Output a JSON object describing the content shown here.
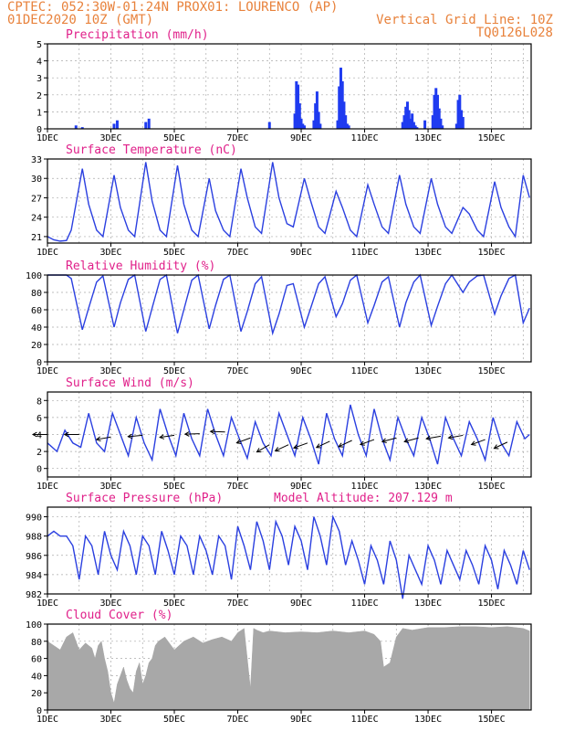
{
  "header": {
    "line1": "CPTEC:   052:30W-01:24N   PROX01: LOURENCO (AP)",
    "line2_left": "01DEC2020 10Z (GMT)",
    "line2_right": "Vertical Grid Line: 10Z",
    "line3_right": "TQ0126L028"
  },
  "colors": {
    "header": "#e8823c",
    "title": "#e0208a",
    "series": "#2a3fe0",
    "bars": "#1f3bf0",
    "cloud": "#a8a8a8",
    "grid": "#aaaaaa"
  },
  "x_ticks": [
    "1DEC",
    "3DEC",
    "5DEC",
    "7DEC",
    "9DEC",
    "11DEC",
    "13DEC",
    "15DEC"
  ],
  "chart_data": [
    {
      "type": "bar",
      "title": "Precipitation (mm/h)",
      "ylim": [
        0,
        5
      ],
      "yticks": [
        0,
        1,
        2,
        3,
        4,
        5
      ],
      "x_unit": "days since 01DEC2020 10Z",
      "x": [
        0.9,
        1.1,
        2.1,
        2.2,
        3.1,
        3.2,
        7.0,
        7.8,
        7.85,
        7.9,
        7.95,
        8.0,
        8.05,
        8.1,
        8.4,
        8.45,
        8.5,
        8.55,
        8.6,
        9.15,
        9.2,
        9.25,
        9.3,
        9.35,
        9.4,
        9.45,
        9.5,
        11.2,
        11.25,
        11.3,
        11.35,
        11.4,
        11.45,
        11.5,
        11.55,
        11.6,
        11.65,
        11.9,
        12.15,
        12.2,
        12.25,
        12.3,
        12.35,
        12.4,
        12.45,
        12.9,
        12.95,
        13.0,
        13.05,
        13.1
      ],
      "values": [
        0.2,
        0.1,
        0.3,
        0.5,
        0.4,
        0.6,
        0.4,
        0.9,
        2.8,
        2.6,
        1.5,
        0.6,
        0.3,
        0.2,
        0.5,
        1.5,
        2.2,
        1.0,
        0.3,
        0.5,
        2.5,
        3.6,
        2.8,
        1.6,
        0.8,
        0.3,
        0.2,
        0.4,
        0.8,
        1.3,
        1.6,
        1.1,
        0.6,
        0.9,
        0.4,
        0.2,
        0.1,
        0.5,
        0.8,
        2.0,
        2.4,
        2.0,
        1.2,
        0.6,
        0.2,
        0.3,
        1.7,
        2.0,
        1.1,
        0.7
      ]
    },
    {
      "type": "line",
      "title": "Surface Temperature (nC)",
      "ylim": [
        20,
        33
      ],
      "yticks": [
        21,
        24,
        27,
        30,
        33
      ],
      "x_unit": "days since 01DEC2020 10Z",
      "x": [
        0,
        0.2,
        0.4,
        0.6,
        0.75,
        1.1,
        1.3,
        1.55,
        1.75,
        2.1,
        2.3,
        2.55,
        2.75,
        3.1,
        3.3,
        3.55,
        3.75,
        4.1,
        4.3,
        4.55,
        4.75,
        5.1,
        5.3,
        5.55,
        5.75,
        6.1,
        6.3,
        6.55,
        6.75,
        7.1,
        7.3,
        7.55,
        7.75,
        8.1,
        8.3,
        8.55,
        8.75,
        9.1,
        9.3,
        9.55,
        9.75,
        10.1,
        10.3,
        10.55,
        10.75,
        11.1,
        11.3,
        11.55,
        11.75,
        12.1,
        12.3,
        12.55,
        12.75,
        13.1,
        13.3,
        13.55,
        13.75,
        14.1,
        14.3,
        14.55,
        14.75,
        15.0,
        15.2
      ],
      "values": [
        21,
        20.5,
        20.3,
        20.4,
        22,
        31.5,
        26,
        22,
        21,
        30.5,
        25.5,
        22,
        21,
        32.5,
        26.5,
        22,
        21,
        32,
        26,
        22,
        21,
        30,
        25,
        22,
        21,
        31.5,
        27,
        22.5,
        21.5,
        32.5,
        27,
        23,
        22.5,
        30,
        26.5,
        22.5,
        21.5,
        28,
        25.5,
        22,
        21,
        29,
        26,
        22.5,
        21.5,
        30.5,
        26,
        22.5,
        21.5,
        30,
        26,
        22.5,
        21.5,
        25.5,
        24.5,
        22,
        21,
        29.5,
        25.5,
        22.5,
        21,
        30.5,
        27
      ]
    },
    {
      "type": "line",
      "title": "Relative Humidity (%)",
      "ylim": [
        0,
        100
      ],
      "yticks": [
        0,
        20,
        40,
        60,
        80,
        100
      ],
      "x_unit": "days since 01DEC2020 10Z",
      "x": [
        0,
        0.2,
        0.4,
        0.6,
        0.75,
        1.1,
        1.3,
        1.55,
        1.75,
        2.1,
        2.3,
        2.55,
        2.75,
        3.1,
        3.3,
        3.55,
        3.75,
        4.1,
        4.3,
        4.55,
        4.75,
        5.1,
        5.3,
        5.55,
        5.75,
        6.1,
        6.3,
        6.55,
        6.75,
        7.1,
        7.3,
        7.55,
        7.75,
        8.1,
        8.3,
        8.55,
        8.75,
        9.1,
        9.3,
        9.55,
        9.75,
        10.1,
        10.3,
        10.55,
        10.75,
        11.1,
        11.3,
        11.55,
        11.75,
        12.1,
        12.3,
        12.55,
        12.75,
        13.1,
        13.3,
        13.55,
        13.75,
        14.1,
        14.3,
        14.55,
        14.75,
        15.0,
        15.2
      ],
      "values": [
        100,
        100,
        100,
        100,
        96,
        37,
        62,
        92,
        99,
        40,
        68,
        95,
        100,
        35,
        62,
        95,
        100,
        33,
        60,
        94,
        100,
        38,
        65,
        95,
        100,
        35,
        58,
        90,
        98,
        33,
        55,
        88,
        90,
        40,
        62,
        90,
        98,
        52,
        67,
        94,
        100,
        45,
        65,
        92,
        98,
        40,
        68,
        92,
        100,
        42,
        64,
        90,
        100,
        80,
        92,
        99,
        100,
        55,
        76,
        96,
        100,
        45,
        62
      ]
    },
    {
      "type": "line",
      "title": "Surface Wind (m/s)",
      "ylim": [
        -1,
        9
      ],
      "yticks": [
        0,
        2,
        4,
        6,
        8
      ],
      "x_unit": "days since 01DEC2020 10Z",
      "x": [
        0,
        0.3,
        0.55,
        0.8,
        1.05,
        1.3,
        1.55,
        1.8,
        2.05,
        2.3,
        2.55,
        2.8,
        3.05,
        3.3,
        3.55,
        3.8,
        4.05,
        4.3,
        4.55,
        4.8,
        5.05,
        5.3,
        5.55,
        5.8,
        6.05,
        6.3,
        6.55,
        6.8,
        7.05,
        7.3,
        7.55,
        7.8,
        8.05,
        8.3,
        8.55,
        8.8,
        9.05,
        9.3,
        9.55,
        9.8,
        10.05,
        10.3,
        10.55,
        10.8,
        11.05,
        11.3,
        11.55,
        11.8,
        12.05,
        12.3,
        12.55,
        12.8,
        13.05,
        13.3,
        13.55,
        13.8,
        14.05,
        14.3,
        14.55,
        14.8,
        15.05,
        15.2
      ],
      "values": [
        3,
        2,
        4.5,
        3,
        2.5,
        6.5,
        3,
        2,
        6.5,
        4,
        1.5,
        6,
        3,
        1,
        7,
        4,
        1.5,
        6.5,
        3.5,
        1.5,
        7,
        4,
        1.5,
        6,
        3.5,
        1.2,
        5.5,
        3,
        1.5,
        6.5,
        4,
        1.5,
        6,
        3.5,
        0.5,
        6.5,
        3.5,
        1.5,
        7.5,
        4,
        1.5,
        7,
        3.5,
        1,
        6,
        3.5,
        1.5,
        6,
        3.5,
        0.5,
        6,
        3.5,
        1.5,
        5.5,
        3.5,
        1,
        6,
        3,
        1.5,
        5.5,
        3.5,
        4
      ]
    },
    {
      "type": "line",
      "title": "Surface Pressure (hPa)",
      "subtitle": "Model Altitude: 207.129 m",
      "ylim": [
        982,
        991
      ],
      "yticks": [
        982,
        984,
        986,
        988,
        990
      ],
      "x_unit": "days since 01DEC2020 10Z",
      "x": [
        0,
        0.2,
        0.4,
        0.6,
        0.8,
        1.0,
        1.2,
        1.4,
        1.6,
        1.8,
        2.0,
        2.2,
        2.4,
        2.6,
        2.8,
        3.0,
        3.2,
        3.4,
        3.6,
        3.8,
        4.0,
        4.2,
        4.4,
        4.6,
        4.8,
        5.0,
        5.2,
        5.4,
        5.6,
        5.8,
        6.0,
        6.2,
        6.4,
        6.6,
        6.8,
        7.0,
        7.2,
        7.4,
        7.6,
        7.8,
        8.0,
        8.2,
        8.4,
        8.6,
        8.8,
        9.0,
        9.2,
        9.4,
        9.6,
        9.8,
        10.0,
        10.2,
        10.4,
        10.6,
        10.8,
        11.0,
        11.2,
        11.4,
        11.6,
        11.8,
        12.0,
        12.2,
        12.4,
        12.6,
        12.8,
        13.0,
        13.2,
        13.4,
        13.6,
        13.8,
        14.0,
        14.2,
        14.4,
        14.6,
        14.8,
        15.0,
        15.2
      ],
      "values": [
        988,
        988.5,
        988,
        988,
        987,
        983.5,
        988,
        987,
        984,
        988.5,
        986,
        984.5,
        988.5,
        987,
        984,
        988,
        987,
        984,
        988.5,
        986.5,
        984,
        988,
        987,
        984,
        988,
        986.5,
        984,
        988,
        987,
        983.5,
        989,
        987,
        984.5,
        989.5,
        987.5,
        984.5,
        989.5,
        988,
        985,
        989,
        987.5,
        984.5,
        990,
        988,
        985,
        990,
        988.5,
        985,
        987.5,
        985.5,
        983,
        987,
        985.5,
        983,
        987.5,
        985.5,
        981.5,
        986,
        984.5,
        983,
        987,
        985.5,
        983,
        986.5,
        985,
        983.5,
        986.5,
        985,
        983,
        987,
        985.5,
        982.5,
        986.5,
        985,
        983,
        986.5,
        984.5
      ]
    },
    {
      "type": "area",
      "title": "Cloud Cover (%)",
      "ylim": [
        0,
        100
      ],
      "yticks": [
        0,
        20,
        40,
        60,
        80,
        100
      ],
      "x_unit": "days since 01DEC2020 10Z",
      "x": [
        0,
        0.2,
        0.4,
        0.6,
        0.8,
        1.0,
        1.2,
        1.4,
        1.5,
        1.6,
        1.7,
        1.8,
        1.9,
        2.0,
        2.1,
        2.2,
        2.3,
        2.4,
        2.5,
        2.6,
        2.7,
        2.8,
        2.9,
        3.0,
        3.1,
        3.2,
        3.3,
        3.4,
        3.5,
        3.7,
        4.0,
        4.3,
        4.6,
        4.9,
        5.2,
        5.5,
        5.8,
        6.0,
        6.2,
        6.4,
        6.5,
        6.6,
        6.8,
        7.0,
        7.5,
        8.0,
        8.5,
        9.0,
        9.5,
        10.0,
        10.3,
        10.5,
        10.6,
        10.8,
        11.0,
        11.2,
        11.5,
        12.0,
        12.5,
        13.0,
        13.5,
        14.0,
        14.5,
        15.0,
        15.2
      ],
      "values": [
        80,
        75,
        70,
        85,
        90,
        70,
        78,
        72,
        60,
        75,
        80,
        60,
        45,
        20,
        8,
        30,
        40,
        50,
        35,
        25,
        20,
        45,
        55,
        30,
        40,
        55,
        60,
        75,
        80,
        85,
        70,
        80,
        85,
        78,
        82,
        85,
        80,
        90,
        95,
        25,
        95,
        93,
        90,
        92,
        90,
        91,
        90,
        92,
        90,
        92,
        88,
        80,
        50,
        55,
        85,
        95,
        93,
        96,
        96,
        97,
        97,
        96,
        97,
        95,
        92
      ]
    },
    {
      "type": "scatter",
      "title": "Wind direction arrows",
      "x_unit": "days since 01DEC2020 10Z",
      "x": [
        0,
        1,
        2,
        3,
        4,
        4.8,
        5.6,
        6.4,
        7.0,
        7.6,
        8.2,
        8.9,
        9.6,
        10.3,
        11.0,
        11.7,
        12.4,
        13.1,
        13.8,
        14.5
      ],
      "values": [
        4,
        4,
        3.7,
        3.9,
        3.9,
        4.1,
        4.3,
        3.6,
        2.8,
        2.8,
        3.0,
        3.2,
        3.3,
        3.4,
        3.6,
        3.6,
        3.8,
        3.9,
        3.4,
        3.1
      ],
      "direction_deg": [
        180,
        180,
        190,
        185,
        188,
        182,
        178,
        200,
        210,
        205,
        200,
        205,
        205,
        200,
        195,
        195,
        190,
        190,
        200,
        205
      ]
    }
  ]
}
